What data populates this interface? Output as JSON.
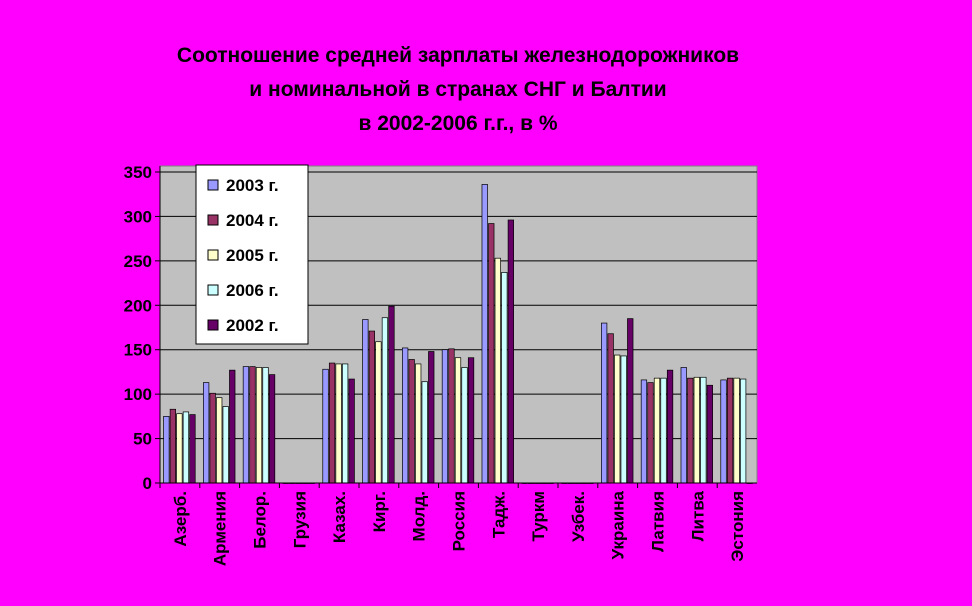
{
  "chart_data": {
    "type": "bar",
    "title": [
      "Соотношение средней зарплаты железнодорожников",
      "и номинальной в странах СНГ и Балтии",
      "в 2002-2006 г.г., в %"
    ],
    "categories": [
      "Азерб.",
      "Армения",
      "Белор.",
      "Грузия",
      "Казах.",
      "Кирг.",
      "Молд.",
      "Россия",
      "Тадж.",
      "Туркм",
      "Узбек.",
      "Украина",
      "Латвия",
      "Литва",
      "Эстония"
    ],
    "series": [
      {
        "name": "2003 г.",
        "color": "#9999ff",
        "values": [
          75,
          113,
          131,
          0,
          128,
          184,
          152,
          150,
          336,
          0,
          0,
          180,
          116,
          130,
          116
        ]
      },
      {
        "name": "2004 г.",
        "color": "#993366",
        "values": [
          83,
          101,
          131,
          0,
          135,
          171,
          139,
          151,
          292,
          0,
          0,
          168,
          113,
          118,
          118
        ]
      },
      {
        "name": "2005 г.",
        "color": "#ffffcc",
        "values": [
          78,
          96,
          130,
          0,
          134,
          159,
          134,
          141,
          253,
          0,
          0,
          144,
          118,
          119,
          118
        ]
      },
      {
        "name": "2006 г.",
        "color": "#ccffff",
        "values": [
          80,
          86,
          130,
          0,
          134,
          186,
          114,
          130,
          237,
          0,
          0,
          143,
          118,
          119,
          117
        ]
      },
      {
        "name": "2002 г.",
        "color": "#660066",
        "values": [
          77,
          127,
          122,
          0,
          117,
          199,
          148,
          141,
          296,
          0,
          0,
          185,
          127,
          110,
          0
        ]
      }
    ],
    "ylim": [
      0,
      350
    ],
    "yticks": [
      0,
      50,
      100,
      150,
      200,
      250,
      300,
      350
    ],
    "grid": true,
    "legend": "top-left"
  }
}
